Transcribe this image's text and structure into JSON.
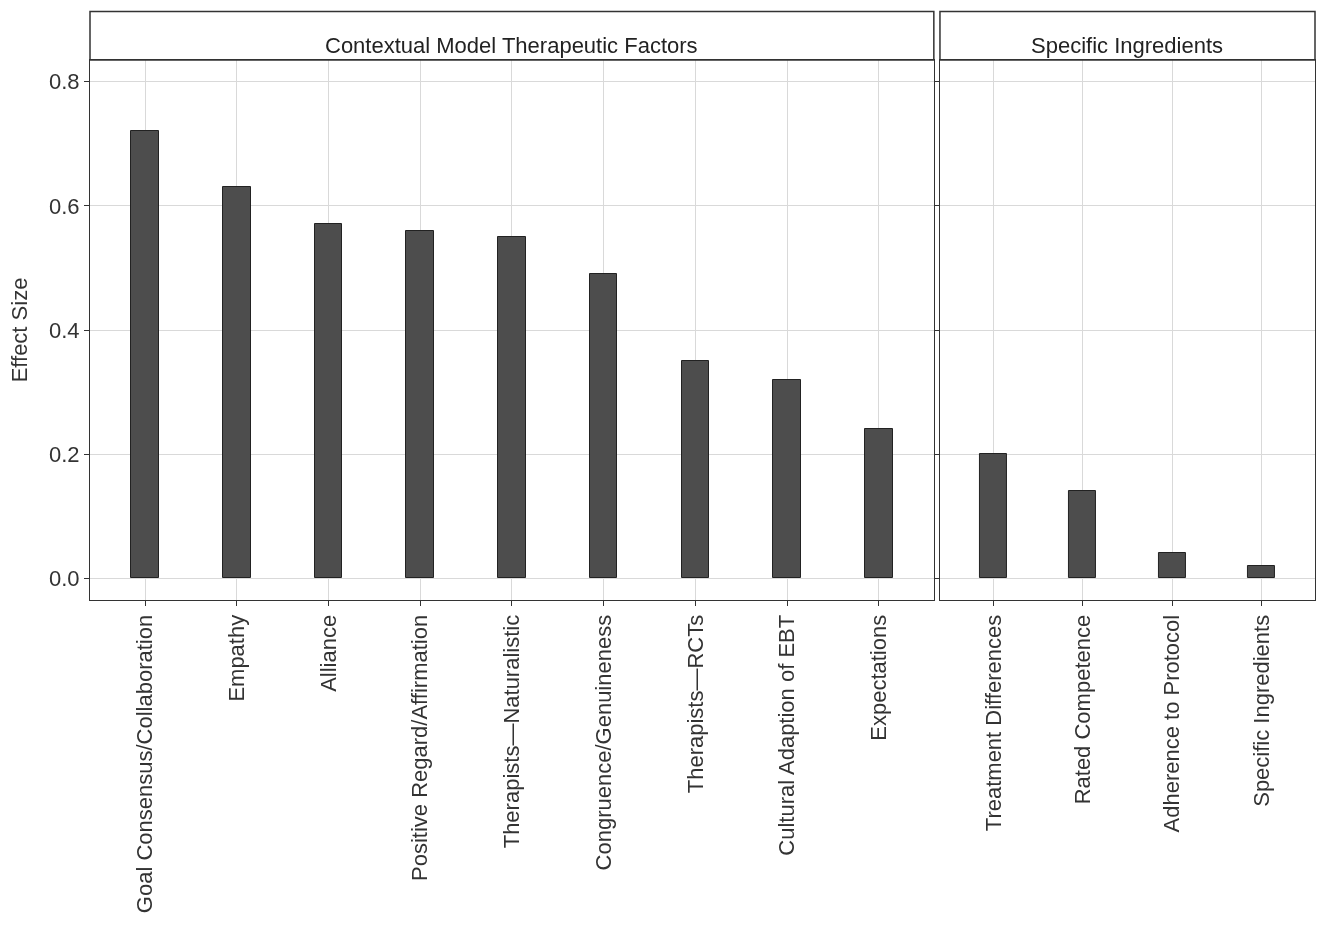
{
  "chart_data": [
    {
      "type": "bar",
      "title": "Contextual Model Therapeutic Factors",
      "ylabel": "Effect Size",
      "categories": [
        "Goal Consensus/Collaboration",
        "Empathy",
        "Alliance",
        "Positive Regard/Affirmation",
        "Therapists—Naturalistic",
        "Congruence/Genuineness",
        "Therapists—RCTs",
        "Cultural Adaption of EBT",
        "Expectations"
      ],
      "values": [
        0.72,
        0.63,
        0.57,
        0.56,
        0.55,
        0.49,
        0.35,
        0.32,
        0.24
      ],
      "color": "#4d4d4d",
      "ylim": [
        -0.035,
        0.835
      ],
      "yticks": [
        {
          "value": 0,
          "label": "0.0"
        },
        0.2,
        0.4,
        0.6,
        0.8
      ],
      "grid": true
    },
    {
      "type": "bar",
      "title": "Specific Ingredients",
      "categories": [
        "Treatment Differences",
        "Rated Competence",
        "Adherence to Protocol",
        "Specific Ingredients"
      ],
      "values": [
        0.2,
        0.14,
        0.04,
        0.02
      ],
      "color": "#4d4d4d",
      "ylim": [
        -0.035,
        0.835
      ],
      "yticks": [
        {
          "value": 0,
          "label": null
        },
        {
          "value": 0.2,
          "label": null
        },
        {
          "value": 0.4,
          "label": null
        },
        {
          "value": 0.6,
          "label": null
        },
        {
          "value": 0.8,
          "label": null
        }
      ],
      "grid": true,
      "tick_labels": "x"
    }
  ]
}
